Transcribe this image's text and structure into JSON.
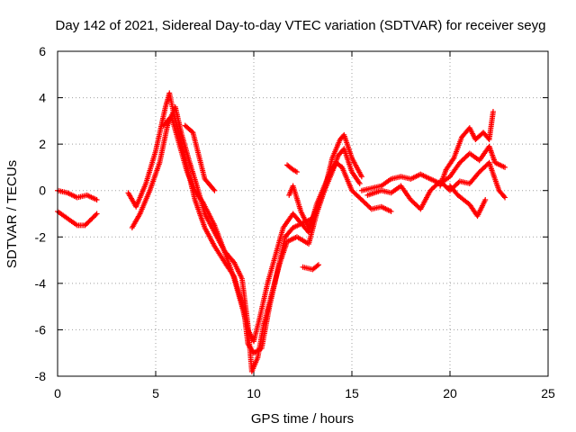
{
  "chart_data": {
    "type": "scatter",
    "title": "Day 142 of 2021, Sidereal Day-to-day VTEC variation (SDTVAR) for receiver seyg",
    "xlabel": "GPS time / hours",
    "ylabel": "SDTVAR / TECUs",
    "xlim": [
      0,
      25
    ],
    "ylim": [
      -8,
      6
    ],
    "xticks": [
      0,
      5,
      10,
      15,
      20,
      25
    ],
    "yticks": [
      -8,
      -6,
      -4,
      -2,
      0,
      2,
      4,
      6
    ],
    "grid": true,
    "marker": "plus",
    "color": "#ff0000",
    "tracks": [
      [
        [
          0.0,
          0.0
        ],
        [
          0.5,
          -0.1
        ],
        [
          1.0,
          -0.3
        ],
        [
          1.5,
          -0.2
        ],
        [
          2.0,
          -0.4
        ]
      ],
      [
        [
          0.0,
          -0.9
        ],
        [
          0.5,
          -1.2
        ],
        [
          1.0,
          -1.5
        ],
        [
          1.4,
          -1.5
        ],
        [
          2.0,
          -1.0
        ]
      ],
      [
        [
          3.6,
          -0.1
        ],
        [
          4.0,
          -0.7
        ],
        [
          4.5,
          0.3
        ],
        [
          5.0,
          1.7
        ],
        [
          5.5,
          3.6
        ],
        [
          5.7,
          4.2
        ],
        [
          5.9,
          3.4
        ],
        [
          6.2,
          2.4
        ],
        [
          6.6,
          1.0
        ],
        [
          7.0,
          -0.4
        ],
        [
          7.5,
          -1.6
        ],
        [
          8.0,
          -2.4
        ],
        [
          8.6,
          -3.2
        ],
        [
          9.0,
          -3.7
        ],
        [
          9.5,
          -5.2
        ],
        [
          9.7,
          -6.6
        ],
        [
          10.0,
          -7.0
        ],
        [
          10.4,
          -6.8
        ],
        [
          10.8,
          -5.0
        ],
        [
          11.2,
          -3.5
        ],
        [
          11.6,
          -2.0
        ],
        [
          12.0,
          -1.6
        ],
        [
          12.5,
          -1.4
        ],
        [
          13.0,
          -1.2
        ],
        [
          13.5,
          -0.2
        ],
        [
          14.0,
          0.8
        ],
        [
          14.3,
          1.5
        ],
        [
          14.6,
          1.8
        ],
        [
          15.0,
          0.8
        ],
        [
          15.4,
          0.3
        ]
      ],
      [
        [
          3.8,
          -1.6
        ],
        [
          4.2,
          -1.0
        ],
        [
          4.7,
          0.0
        ],
        [
          5.2,
          1.2
        ],
        [
          5.6,
          2.8
        ],
        [
          6.0,
          3.6
        ],
        [
          6.3,
          2.5
        ],
        [
          6.7,
          1.3
        ],
        [
          7.1,
          0.2
        ],
        [
          7.5,
          -1.0
        ],
        [
          8.0,
          -1.8
        ],
        [
          8.5,
          -2.6
        ],
        [
          9.0,
          -3.1
        ],
        [
          9.4,
          -3.8
        ],
        [
          9.7,
          -5.8
        ],
        [
          9.9,
          -7.8
        ],
        [
          10.2,
          -7.2
        ],
        [
          10.5,
          -5.8
        ],
        [
          10.9,
          -4.5
        ],
        [
          11.3,
          -3.2
        ],
        [
          11.7,
          -2.2
        ],
        [
          12.2,
          -2.0
        ],
        [
          12.8,
          -2.3
        ],
        [
          13.2,
          -1.0
        ],
        [
          13.6,
          0.0
        ],
        [
          14.0,
          1.4
        ],
        [
          14.4,
          2.2
        ],
        [
          14.6,
          2.4
        ],
        [
          15.0,
          1.4
        ],
        [
          15.5,
          0.6
        ]
      ],
      [
        [
          5.4,
          2.8
        ],
        [
          5.8,
          3.2
        ],
        [
          6.2,
          2.0
        ],
        [
          6.6,
          0.8
        ],
        [
          7.0,
          0.0
        ],
        [
          7.4,
          -0.5
        ],
        [
          8.0,
          -1.5
        ],
        [
          8.5,
          -2.6
        ],
        [
          9.0,
          -3.8
        ],
        [
          9.4,
          -5.0
        ],
        [
          9.7,
          -6.0
        ],
        [
          10.0,
          -6.5
        ],
        [
          10.3,
          -5.5
        ],
        [
          10.7,
          -4.0
        ],
        [
          11.1,
          -2.8
        ],
        [
          11.5,
          -1.6
        ],
        [
          12.0,
          -1.0
        ],
        [
          12.4,
          -1.4
        ],
        [
          12.8,
          -1.8
        ],
        [
          13.2,
          -0.6
        ],
        [
          13.8,
          0.6
        ],
        [
          14.2,
          1.2
        ],
        [
          14.5,
          1.0
        ]
      ],
      [
        [
          6.5,
          2.8
        ],
        [
          6.9,
          2.5
        ],
        [
          7.2,
          1.5
        ],
        [
          7.5,
          0.5
        ],
        [
          7.8,
          0.2
        ],
        [
          8.0,
          0.0
        ]
      ],
      [
        [
          11.8,
          -0.2
        ],
        [
          12.0,
          0.2
        ],
        [
          12.4,
          -0.9
        ],
        [
          12.8,
          -1.6
        ],
        [
          13.2,
          -0.8
        ]
      ],
      [
        [
          11.7,
          1.1
        ],
        [
          12.0,
          0.9
        ],
        [
          12.2,
          0.8
        ]
      ],
      [
        [
          12.5,
          -3.3
        ],
        [
          13.0,
          -3.4
        ],
        [
          13.3,
          -3.2
        ]
      ],
      [
        [
          14.5,
          1.0
        ],
        [
          15.0,
          0.0
        ],
        [
          15.5,
          -0.4
        ],
        [
          16.0,
          -0.8
        ],
        [
          16.5,
          -0.7
        ],
        [
          17.0,
          -0.9
        ]
      ],
      [
        [
          15.5,
          0.0
        ],
        [
          16.0,
          0.1
        ],
        [
          16.5,
          0.2
        ],
        [
          17.0,
          0.5
        ],
        [
          17.5,
          0.6
        ],
        [
          18.0,
          0.5
        ],
        [
          18.5,
          0.7
        ],
        [
          19.0,
          0.5
        ],
        [
          19.5,
          0.3
        ],
        [
          20.0,
          0.6
        ],
        [
          20.5,
          1.2
        ],
        [
          21.0,
          1.6
        ],
        [
          21.5,
          1.3
        ],
        [
          22.0,
          1.9
        ],
        [
          22.3,
          1.2
        ],
        [
          22.8,
          1.0
        ]
      ],
      [
        [
          15.8,
          -0.2
        ],
        [
          16.5,
          0.0
        ],
        [
          17.0,
          -0.1
        ],
        [
          17.5,
          0.2
        ],
        [
          18.0,
          -0.4
        ],
        [
          18.5,
          -0.8
        ],
        [
          19.0,
          0.0
        ],
        [
          19.5,
          0.4
        ],
        [
          20.0,
          0.0
        ],
        [
          20.5,
          0.4
        ],
        [
          21.0,
          0.3
        ],
        [
          21.5,
          0.8
        ],
        [
          22.0,
          1.2
        ],
        [
          22.5,
          0.0
        ],
        [
          22.8,
          -0.3
        ]
      ],
      [
        [
          19.5,
          0.2
        ],
        [
          19.8,
          0.9
        ],
        [
          20.2,
          1.4
        ],
        [
          20.6,
          2.3
        ],
        [
          21.0,
          2.7
        ],
        [
          21.3,
          2.2
        ],
        [
          21.7,
          2.5
        ],
        [
          22.0,
          2.2
        ],
        [
          22.2,
          3.4
        ]
      ],
      [
        [
          20.0,
          0.2
        ],
        [
          20.4,
          -0.2
        ],
        [
          21.0,
          -0.6
        ],
        [
          21.4,
          -1.1
        ],
        [
          21.8,
          -0.4
        ]
      ]
    ]
  }
}
